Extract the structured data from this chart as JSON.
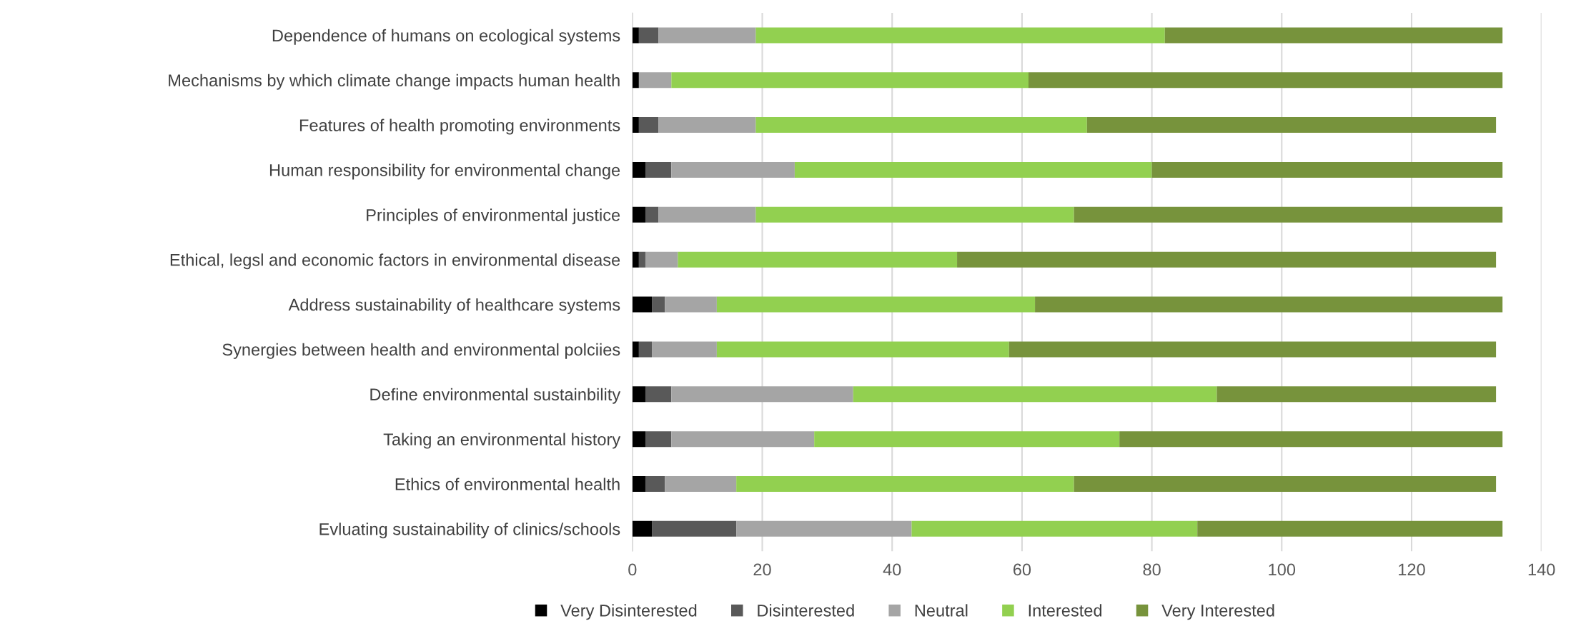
{
  "chart_data": {
    "type": "bar",
    "orientation": "horizontal",
    "stacked": true,
    "categories": [
      "Dependence of humans on ecological systems",
      "Mechanisms by which climate change impacts human health",
      "Features of health promoting environments",
      "Human responsibility for environmental change",
      "Principles of environmental justice",
      "Ethical, legsl and economic factors in environmental disease",
      "Address sustainability of healthcare systems",
      "Synergies between health and environmental polciies",
      "Define environmental sustainbility",
      "Taking an environmental history",
      "Ethics of environmental health",
      "Evluating sustainability of clinics/schools"
    ],
    "series": [
      {
        "name": "Very Disinterested",
        "color": "#000000",
        "values": [
          1,
          1,
          1,
          2,
          2,
          1,
          3,
          1,
          2,
          2,
          2,
          3
        ]
      },
      {
        "name": "Disinterested",
        "color": "#595959",
        "values": [
          3,
          0,
          3,
          4,
          2,
          1,
          2,
          2,
          4,
          4,
          3,
          13
        ]
      },
      {
        "name": "Neutral",
        "color": "#a5a5a5",
        "values": [
          15,
          5,
          15,
          19,
          15,
          5,
          8,
          10,
          28,
          22,
          11,
          27
        ]
      },
      {
        "name": "Interested",
        "color": "#92d050",
        "values": [
          63,
          55,
          51,
          55,
          49,
          43,
          49,
          45,
          56,
          47,
          52,
          44
        ]
      },
      {
        "name": "Very Interested",
        "color": "#77933c",
        "values": [
          52,
          73,
          63,
          54,
          66,
          83,
          72,
          75,
          43,
          59,
          65,
          47
        ]
      }
    ],
    "xlim": [
      0,
      140
    ],
    "xticks": [
      0,
      20,
      40,
      60,
      80,
      100,
      120,
      140
    ],
    "grid": "x",
    "legend": "bottom"
  }
}
